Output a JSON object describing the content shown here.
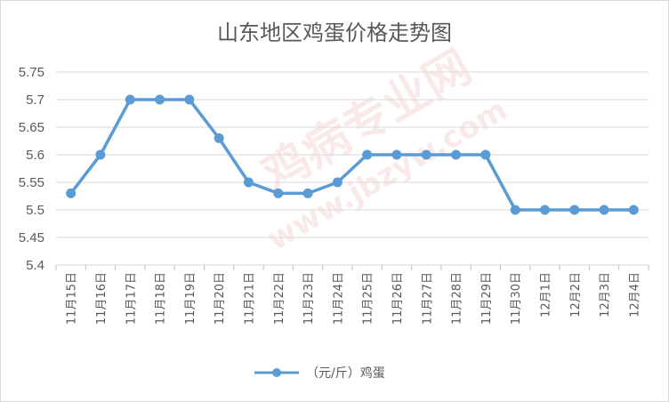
{
  "watermark": {
    "line1": "鸡病专业网",
    "line2": "www.jbzyw.com"
  },
  "chart_data": {
    "type": "line",
    "title": "山东地区鸡蛋价格走势图",
    "xlabel": "",
    "ylabel": "",
    "ylim": [
      5.4,
      5.75
    ],
    "yticks": [
      "5.4",
      "5.45",
      "5.5",
      "5.55",
      "5.6",
      "5.65",
      "5.7",
      "5.75"
    ],
    "grid": true,
    "legend": "bottom",
    "line_color": "#5b9bd5",
    "categories": [
      "11月15日",
      "11月16日",
      "11月17日",
      "11月18日",
      "11月19日",
      "11月20日",
      "11月21日",
      "11月22日",
      "11月23日",
      "11月24日",
      "11月25日",
      "11月26日",
      "11月27日",
      "11月28日",
      "11月29日",
      "11月30日",
      "12月1日",
      "12月2日",
      "12月3日",
      "12月4日"
    ],
    "series": [
      {
        "name": "（元/斤）鸡蛋",
        "values": [
          5.53,
          5.6,
          5.7,
          5.7,
          5.7,
          5.63,
          5.55,
          5.53,
          5.53,
          5.55,
          5.6,
          5.6,
          5.6,
          5.6,
          5.6,
          5.5,
          5.5,
          5.5,
          5.5,
          5.5
        ]
      }
    ]
  }
}
